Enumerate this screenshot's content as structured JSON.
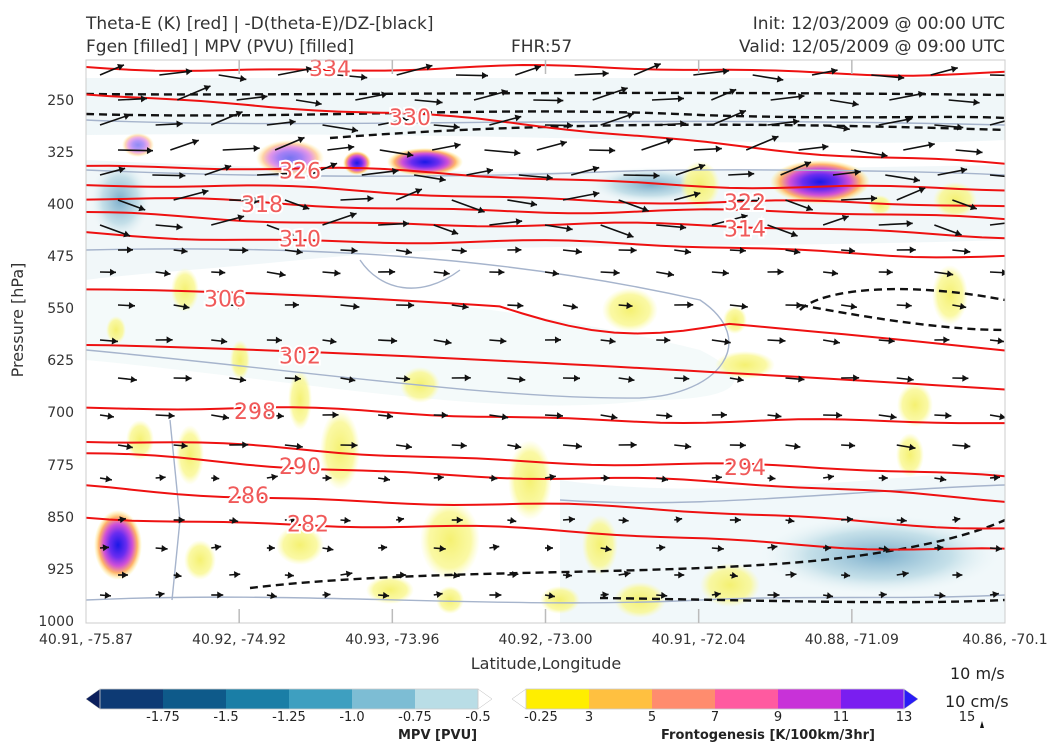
{
  "header": {
    "title_left_1": "Theta-E (K) [red] | -D(theta-E)/DZ-[black]",
    "title_left_2": "Fgen [filled] | MPV (PVU) [filled]",
    "fhr": "FHR:57",
    "init": "Init: 12/03/2009 @ 00:00 UTC",
    "valid": "Valid: 12/05/2009 @ 09:00 UTC"
  },
  "chart_data": {
    "type": "cross-section",
    "xlabel": "Latitude,Longitude",
    "ylabel": "Pressure [hPa]",
    "x_ticks": [
      "40.91, -75.87",
      "40.92, -74.92",
      "40.93, -73.96",
      "40.92, -73.00",
      "40.91, -72.04",
      "40.88, -71.09",
      "40.86, -70.1"
    ],
    "y_ticks": [
      250,
      325,
      400,
      475,
      550,
      625,
      700,
      775,
      850,
      925,
      1000
    ],
    "ylim": [
      1000,
      190
    ],
    "theta_e_contours": [
      {
        "value": 334,
        "level_left": 200,
        "level_right": 207
      },
      {
        "value": 330,
        "level_left": 234,
        "level_right": 342
      },
      {
        "value": 326,
        "level_left": 340,
        "level_right": 380
      },
      {
        "value": 322,
        "level_left": 370,
        "level_right": 404
      },
      {
        "value": 318,
        "level_left": 392,
        "level_right": 418
      },
      {
        "value": 314,
        "level_left": 414,
        "level_right": 440
      },
      {
        "value": 310,
        "level_left": 440,
        "level_right": 470
      },
      {
        "value": 306,
        "level_left": 520,
        "level_right": 608
      },
      {
        "value": 302,
        "level_left": 600,
        "level_right": 664
      },
      {
        "value": 298,
        "level_left": 690,
        "level_right": 716
      },
      {
        "value": 294,
        "level_left": 740,
        "level_right": 790
      },
      {
        "value": 290,
        "level_left": 760,
        "level_right": 820
      },
      {
        "value": 286,
        "level_left": 806,
        "level_right": 860
      },
      {
        "value": 282,
        "level_left": 845,
        "level_right": 895
      }
    ],
    "mpv_colorbar": {
      "title": "MPV [PVU]",
      "tick_labels": [
        "-1.75",
        "-1.5",
        "-1.25",
        "-1.0",
        "-0.75",
        "-0.5",
        "-0.25"
      ],
      "colors": [
        "#0b1f5c",
        "#0d3a74",
        "#0e5a8a",
        "#1a7ea6",
        "#3e9fc0",
        "#7dbdd4",
        "#b9dde6",
        "#ffffff"
      ]
    },
    "fgen_colorbar": {
      "title": "Frontogenesis [K/100km/3hr]",
      "tick_labels": [
        "3",
        "5",
        "7",
        "9",
        "11",
        "13",
        "15"
      ],
      "colors": [
        "#ffffff",
        "#ffee00",
        "#ffc040",
        "#ff8c6e",
        "#ff5aa0",
        "#c832d8",
        "#7a1ef0",
        "#2a1cf6"
      ]
    },
    "vector_key": {
      "horizontal": "10 m/s",
      "vertical": "10 cm/s"
    }
  }
}
